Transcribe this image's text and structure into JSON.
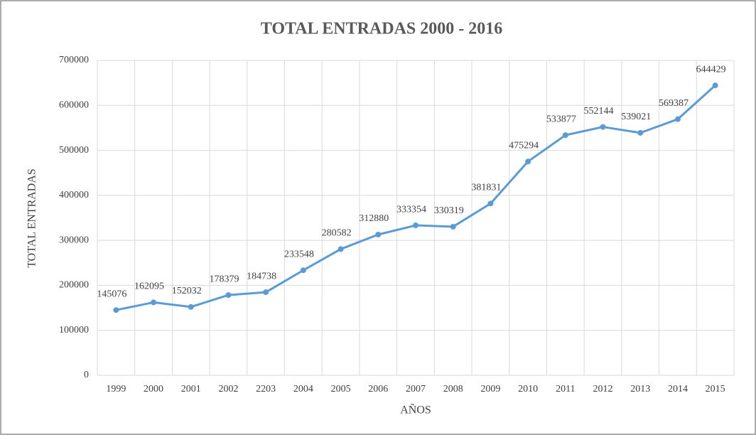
{
  "chart_data": {
    "type": "line",
    "title": "TOTAL ENTRADAS 2000 - 2016",
    "x_label": "AÑOS",
    "y_label": "TOTAL ENTRADAS",
    "categories": [
      "1999",
      "2000",
      "2001",
      "2002",
      "2203",
      "2004",
      "2005",
      "2006",
      "2007",
      "2008",
      "2009",
      "2010",
      "2011",
      "2012",
      "2013",
      "2014",
      "2015"
    ],
    "series": [
      {
        "name": "TOTAL ENTRADAS",
        "color": "#5b9bd5",
        "values": [
          145076,
          162095,
          152032,
          178379,
          184738,
          233548,
          280582,
          312880,
          333354,
          330319,
          381831,
          475294,
          533877,
          552144,
          539021,
          569387,
          644429
        ]
      }
    ],
    "ylim": [
      0,
      700000
    ],
    "yticks": [
      0,
      100000,
      200000,
      300000,
      400000,
      500000,
      600000,
      700000
    ],
    "grid": true
  }
}
